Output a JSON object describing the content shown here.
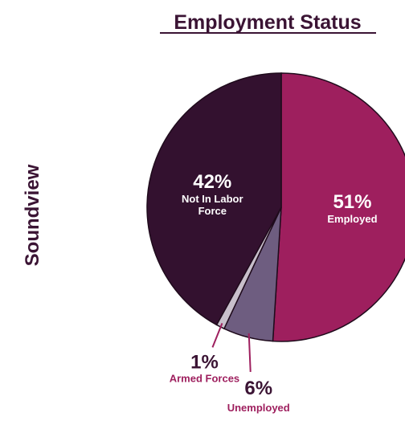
{
  "chart_data": {
    "type": "pie",
    "title": "Employment Status",
    "row_label": "Soundview",
    "slices": [
      {
        "label": "Employed",
        "value": 51,
        "display": "51%",
        "color": "#9e1f5e"
      },
      {
        "label": "Unemployed",
        "value": 6,
        "display": "6%",
        "color": "#6e5d80"
      },
      {
        "label": "Armed Forces",
        "value": 1,
        "display": "1%",
        "color": "#c8bfcb"
      },
      {
        "label": "Not In Labor Force",
        "value": 42,
        "display": "42%",
        "color": "#33112f"
      }
    ],
    "colors": {
      "title": "#3b1434",
      "callout_label": "#9e1f5e",
      "callout_value": "#3b1434",
      "inside_text": "#ffffff"
    }
  }
}
